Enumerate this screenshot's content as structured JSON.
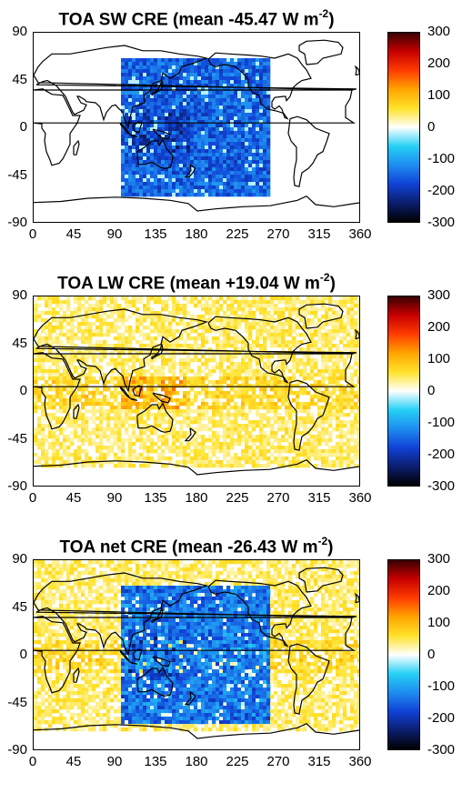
{
  "panels": [
    {
      "id": "sw",
      "title_prefix": "TOA SW CRE (mean -45.47 W m",
      "title_exp": "-2",
      "title_suffix": ")",
      "mean": -45.47,
      "field": "negative-only"
    },
    {
      "id": "lw",
      "title_prefix": "TOA LW CRE (mean +19.04 W m",
      "title_exp": "-2",
      "title_suffix": ")",
      "mean": 19.04,
      "field": "positive-only"
    },
    {
      "id": "net",
      "title_prefix": "TOA net CRE (mean -26.43 W m",
      "title_exp": "-2",
      "title_suffix": ")",
      "mean": -26.43,
      "field": "mixed"
    }
  ],
  "y_ticks": [
    "90",
    "45",
    "0",
    "-45",
    "-90"
  ],
  "x_ticks": [
    "0",
    "45",
    "90",
    "135",
    "180",
    "225",
    "270",
    "315",
    "360"
  ],
  "colorbar": {
    "ticks": [
      "300",
      "200",
      "100",
      "0",
      "-100",
      "-200",
      "-300"
    ],
    "range": [
      -300,
      300
    ],
    "colormap": [
      "#000000",
      "#0b1e6e",
      "#1042d6",
      "#1e8cf0",
      "#26d0f5",
      "#ffffff",
      "#ffe22a",
      "#ffa500",
      "#ff3c00",
      "#c80000",
      "#3a0000"
    ]
  },
  "axis_ranges": {
    "lon": [
      0,
      360
    ],
    "lat": [
      -90,
      90
    ]
  }
}
